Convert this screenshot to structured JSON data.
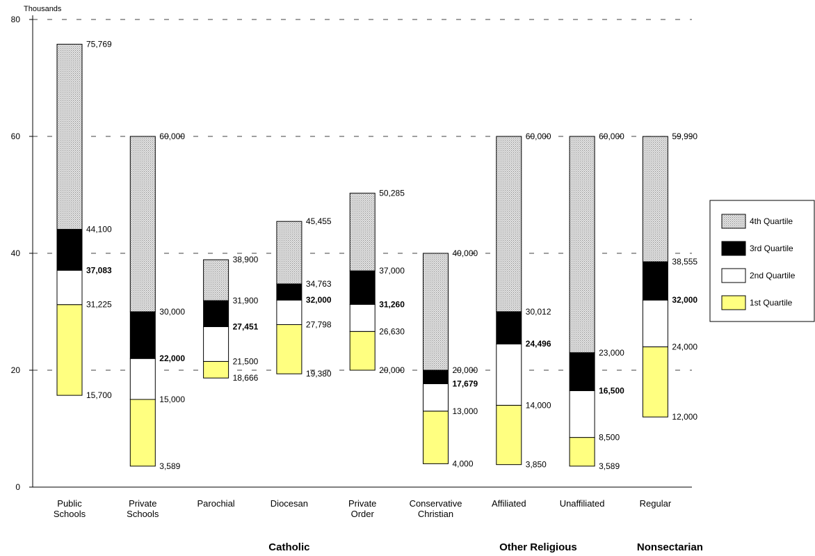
{
  "chart_data": {
    "type": "bar",
    "subtype": "stacked-range",
    "ylabel": "Thousands",
    "ylim": [
      0,
      80
    ],
    "yticks": [
      "0",
      "20",
      "40",
      "60",
      "80"
    ],
    "grid": true,
    "legend_placement": "right",
    "categories": [
      {
        "label": [
          "Public",
          "Schools"
        ]
      },
      {
        "label": [
          "Private",
          "Schools"
        ]
      },
      {
        "label": [
          "Parochial"
        ]
      },
      {
        "label": [
          "Diocesan"
        ]
      },
      {
        "label": [
          "Private",
          "Order"
        ]
      },
      {
        "label": [
          "Conservative",
          "Christian"
        ]
      },
      {
        "label": [
          "Affiliated"
        ]
      },
      {
        "label": [
          "Unaffiliated"
        ]
      },
      {
        "label": [
          "Regular"
        ]
      }
    ],
    "groups": [
      {
        "label": "Catholic",
        "category_index": 3
      },
      {
        "label": "Other Religious",
        "category_index": 6.4
      },
      {
        "label": "Nonsectarian",
        "category_index": 8.2
      }
    ],
    "boundaries": [
      {
        "min": 15.7,
        "q1": 31.225,
        "median": 37.083,
        "q3": 44.1,
        "max": 75.769,
        "labels": {
          "min": "15,700",
          "q1": "31,225",
          "median": "37,083",
          "q3": "44,100",
          "max": "75,769"
        }
      },
      {
        "min": 3.589,
        "q1": 15.0,
        "median": 22.0,
        "q3": 30.0,
        "max": 60.0,
        "labels": {
          "min": "3,589",
          "q1": "15,000",
          "median": "22,000",
          "q3": "30,000",
          "max": "60,000"
        }
      },
      {
        "min": 18.666,
        "q1": 21.5,
        "median": 27.451,
        "q3": 31.9,
        "max": 38.9,
        "labels": {
          "min": "18,666",
          "q1": "21,500",
          "median": "27,451",
          "q3": "31,900",
          "max": "38,900"
        }
      },
      {
        "min": 19.38,
        "q1": 27.798,
        "median": 32.0,
        "q3": 34.763,
        "max": 45.455,
        "labels": {
          "min": "19,380",
          "q1": "27,798",
          "median": "32,000",
          "q3": "34,763",
          "max": "45,455"
        }
      },
      {
        "min": 20.0,
        "q1": 26.63,
        "median": 31.26,
        "q3": 37.0,
        "max": 50.285,
        "labels": {
          "min": "20,000",
          "q1": "26,630",
          "median": "31,260",
          "q3": "37,000",
          "max": "50,285"
        }
      },
      {
        "min": 4.0,
        "q1": 13.0,
        "median": 17.679,
        "q3": 20.0,
        "max": 40.0,
        "labels": {
          "min": "4,000",
          "q1": "13,000",
          "median": "17,679",
          "q3": "20,000",
          "max": "40,000"
        }
      },
      {
        "min": 3.85,
        "q1": 14.0,
        "median": 24.496,
        "q3": 30.012,
        "max": 60.0,
        "labels": {
          "min": "3,850",
          "q1": "14,000",
          "median": "24,496",
          "q3": "30,012",
          "max": "60,000"
        }
      },
      {
        "min": 3.589,
        "q1": 8.5,
        "median": 16.5,
        "q3": 23.0,
        "max": 60.0,
        "labels": {
          "min": "3,589",
          "q1": "8,500",
          "median": "16,500",
          "q3": "23,000",
          "max": "60,000"
        }
      },
      {
        "min": 12.0,
        "q1": 24.0,
        "median": 32.0,
        "q3": 38.555,
        "max": 59.99,
        "labels": {
          "min": "12,000",
          "q1": "24,000",
          "median": "32,000",
          "q3": "38,555",
          "max": "59,990"
        }
      }
    ],
    "series": [
      {
        "name": "1st Quartile",
        "color": "#ffff80",
        "fill": "solid"
      },
      {
        "name": "2nd Quartile",
        "color": "#ffffff",
        "fill": "solid"
      },
      {
        "name": "3rd Quartile",
        "color": "#000000",
        "fill": "solid"
      },
      {
        "name": "4th Quartile",
        "color": "#c8c8c8",
        "fill": "dotted"
      }
    ],
    "legend_order": [
      "4th Quartile",
      "3rd Quartile",
      "2nd Quartile",
      "1st Quartile"
    ]
  }
}
